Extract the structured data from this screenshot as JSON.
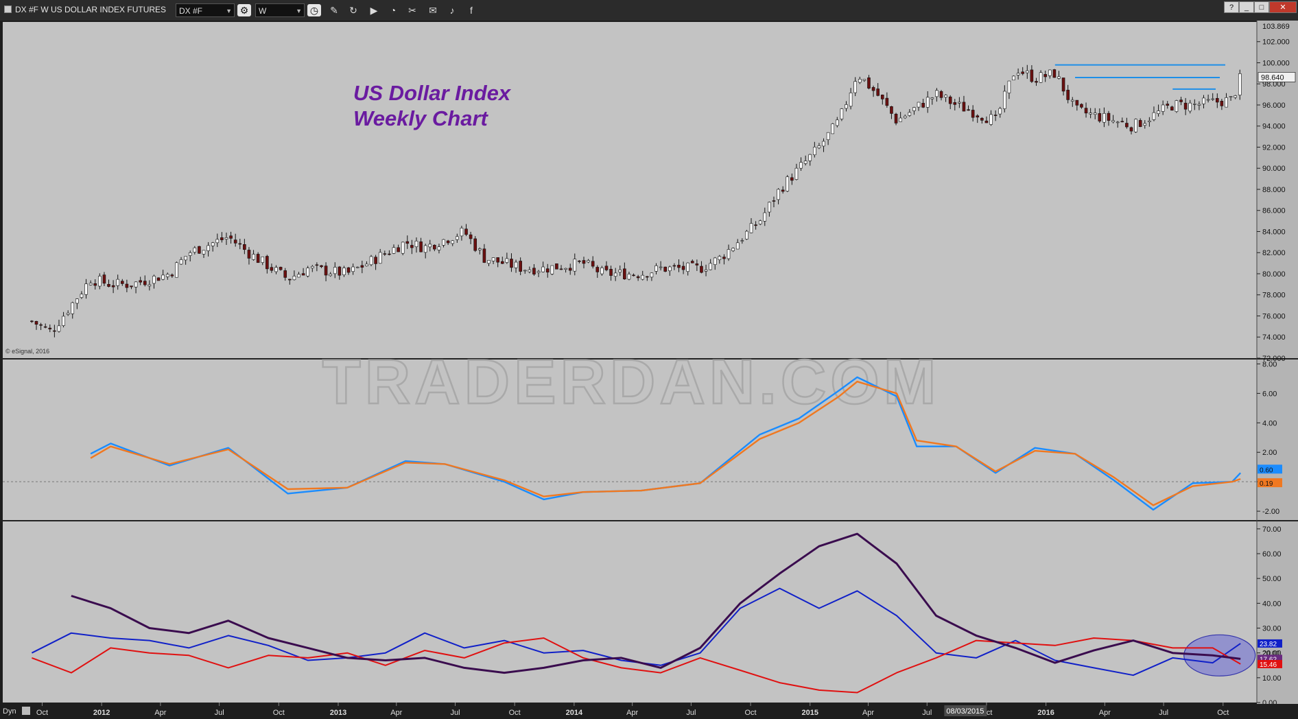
{
  "toolbar": {
    "title": "DX #F W US DOLLAR INDEX FUTURES",
    "symbol": "DX #F",
    "interval": "W"
  },
  "chart_data": [
    {
      "panel": "price",
      "type": "candlestick",
      "title": "US Dollar Index",
      "subtitle": "Weekly Chart",
      "watermark": "TRADERDAN.COM",
      "credit": "© eSignal, 2016",
      "y_ticks": [
        "102.000",
        "100.000",
        "98.000",
        "96.000",
        "94.000",
        "92.000",
        "90.000",
        "88.000",
        "86.000",
        "84.000",
        "82.000",
        "80.000",
        "78.000",
        "76.000",
        "74.000",
        "72.000"
      ],
      "top_label": "103.869",
      "last_price": "98.640",
      "ylim": [
        72,
        103.869
      ],
      "x": [
        "2011-09",
        "2011-10",
        "2011-12",
        "2012-01",
        "2012-02",
        "2012-04",
        "2012-05",
        "2012-07",
        "2012-08",
        "2012-10",
        "2012-11",
        "2013-01",
        "2013-02",
        "2013-04",
        "2013-05",
        "2013-07",
        "2013-08",
        "2013-10",
        "2013-11",
        "2014-01",
        "2014-02",
        "2014-04",
        "2014-05",
        "2014-07",
        "2014-08",
        "2014-10",
        "2014-11",
        "2015-01",
        "2015-02",
        "2015-03",
        "2015-04",
        "2015-05",
        "2015-07",
        "2015-08",
        "2015-10",
        "2015-11",
        "2015-12",
        "2016-01",
        "2016-02",
        "2016-04",
        "2016-05",
        "2016-07",
        "2016-08",
        "2016-10",
        "2016-10-28"
      ],
      "close": [
        75.5,
        74.5,
        79.5,
        79.0,
        79.0,
        80.0,
        82.0,
        83.5,
        82.0,
        79.5,
        80.5,
        80.0,
        81.0,
        83.0,
        82.5,
        84.0,
        81.5,
        80.5,
        80.5,
        81.0,
        80.0,
        80.0,
        80.5,
        80.5,
        81.5,
        85.0,
        88.0,
        92.0,
        94.5,
        99.0,
        97.0,
        94.5,
        97.0,
        96.0,
        94.5,
        99.5,
        98.5,
        99.0,
        95.5,
        94.5,
        94.0,
        96.0,
        96.0,
        96.5,
        98.6
      ],
      "resistance_lines": [
        {
          "from": "2016-01",
          "value": 99.8
        },
        {
          "from": "2016-02",
          "value": 98.6
        },
        {
          "from": "2016-07",
          "value": 97.5
        }
      ]
    },
    {
      "panel": "oscillator",
      "type": "line",
      "y_ticks": [
        "8.00",
        "6.00",
        "4.00",
        "2.00",
        "0.00",
        "-2.00"
      ],
      "ylim": [
        -2.6,
        8.3
      ],
      "zero_line": true,
      "x": [
        "2011-12",
        "2012-01",
        "2012-04",
        "2012-07",
        "2012-10",
        "2013-01",
        "2013-04",
        "2013-06",
        "2013-09",
        "2013-11",
        "2014-01",
        "2014-04",
        "2014-07",
        "2014-10",
        "2014-12",
        "2015-02",
        "2015-03",
        "2015-05",
        "2015-06",
        "2015-08",
        "2015-10",
        "2015-12",
        "2016-02",
        "2016-04",
        "2016-06",
        "2016-08",
        "2016-10",
        "2016-10-28"
      ],
      "series": [
        {
          "color": "#1a8cff",
          "last_label": "0.60",
          "values": [
            1.9,
            2.6,
            1.1,
            2.3,
            -0.8,
            -0.4,
            1.4,
            1.2,
            0.0,
            -1.2,
            -0.7,
            -0.6,
            -0.1,
            3.2,
            4.3,
            6.2,
            7.1,
            5.8,
            2.4,
            2.4,
            0.6,
            2.3,
            1.9,
            0.1,
            -1.9,
            -0.1,
            0.0,
            0.6
          ]
        },
        {
          "color": "#f07820",
          "last_label": "0.19",
          "values": [
            1.6,
            2.4,
            1.2,
            2.2,
            -0.5,
            -0.4,
            1.3,
            1.2,
            0.1,
            -1.0,
            -0.7,
            -0.6,
            -0.1,
            2.9,
            4.0,
            5.8,
            6.8,
            6.0,
            2.8,
            2.4,
            0.7,
            2.1,
            1.9,
            0.3,
            -1.6,
            -0.3,
            0.0,
            0.19
          ]
        }
      ]
    },
    {
      "panel": "dmi",
      "type": "line",
      "y_ticks": [
        "70.00",
        "60.00",
        "50.00",
        "40.00",
        "30.00",
        "20.00",
        "10.00",
        "0.00"
      ],
      "ylim": [
        0,
        73
      ],
      "x": [
        "2011-09",
        "2011-11",
        "2012-01",
        "2012-03",
        "2012-05",
        "2012-07",
        "2012-09",
        "2012-11",
        "2013-01",
        "2013-03",
        "2013-05",
        "2013-07",
        "2013-09",
        "2013-11",
        "2014-01",
        "2014-03",
        "2014-05",
        "2014-07",
        "2014-09",
        "2014-11",
        "2015-01",
        "2015-03",
        "2015-05",
        "2015-07",
        "2015-09",
        "2015-11",
        "2016-01",
        "2016-03",
        "2016-05",
        "2016-07",
        "2016-09",
        "2016-10-28"
      ],
      "series": [
        {
          "color": "#1020c8",
          "last_label": "23.82",
          "values": [
            20,
            28,
            26,
            25,
            22,
            27,
            23,
            17,
            18,
            20,
            28,
            22,
            25,
            20,
            21,
            17,
            15,
            20,
            38,
            46,
            38,
            45,
            35,
            20,
            18,
            25,
            17,
            14,
            11,
            18,
            16,
            23.8
          ]
        },
        {
          "color": "#e01010",
          "last_label": "15.46",
          "values": [
            18,
            12,
            22,
            20,
            19,
            14,
            19,
            18,
            20,
            15,
            21,
            18,
            24,
            26,
            18,
            14,
            12,
            18,
            13,
            8,
            5,
            4,
            12,
            18,
            25,
            24,
            23,
            26,
            25,
            22,
            22,
            15.5
          ]
        },
        {
          "color": "#3a0c4e",
          "last_label": "17.62",
          "values": [
            null,
            43,
            38,
            30,
            28,
            33,
            26,
            22,
            18,
            17,
            18,
            14,
            12,
            14,
            17,
            18,
            14,
            22,
            40,
            52,
            63,
            68,
            56,
            35,
            27,
            22,
            16,
            21,
            25,
            20,
            19,
            17.6
          ]
        }
      ],
      "extra_label": "20.00",
      "highlight": "ellipse"
    }
  ],
  "x_axis": {
    "prefix": "Dyn",
    "labels": [
      "Oct",
      "2012",
      "Apr",
      "Jul",
      "Oct",
      "2013",
      "Apr",
      "Jul",
      "Oct",
      "2014",
      "Apr",
      "Jul",
      "Oct",
      "2015",
      "Apr",
      "Jul",
      "Oct",
      "2016",
      "Apr",
      "Jul",
      "Oct"
    ],
    "cursor_date": "08/03/2015"
  }
}
